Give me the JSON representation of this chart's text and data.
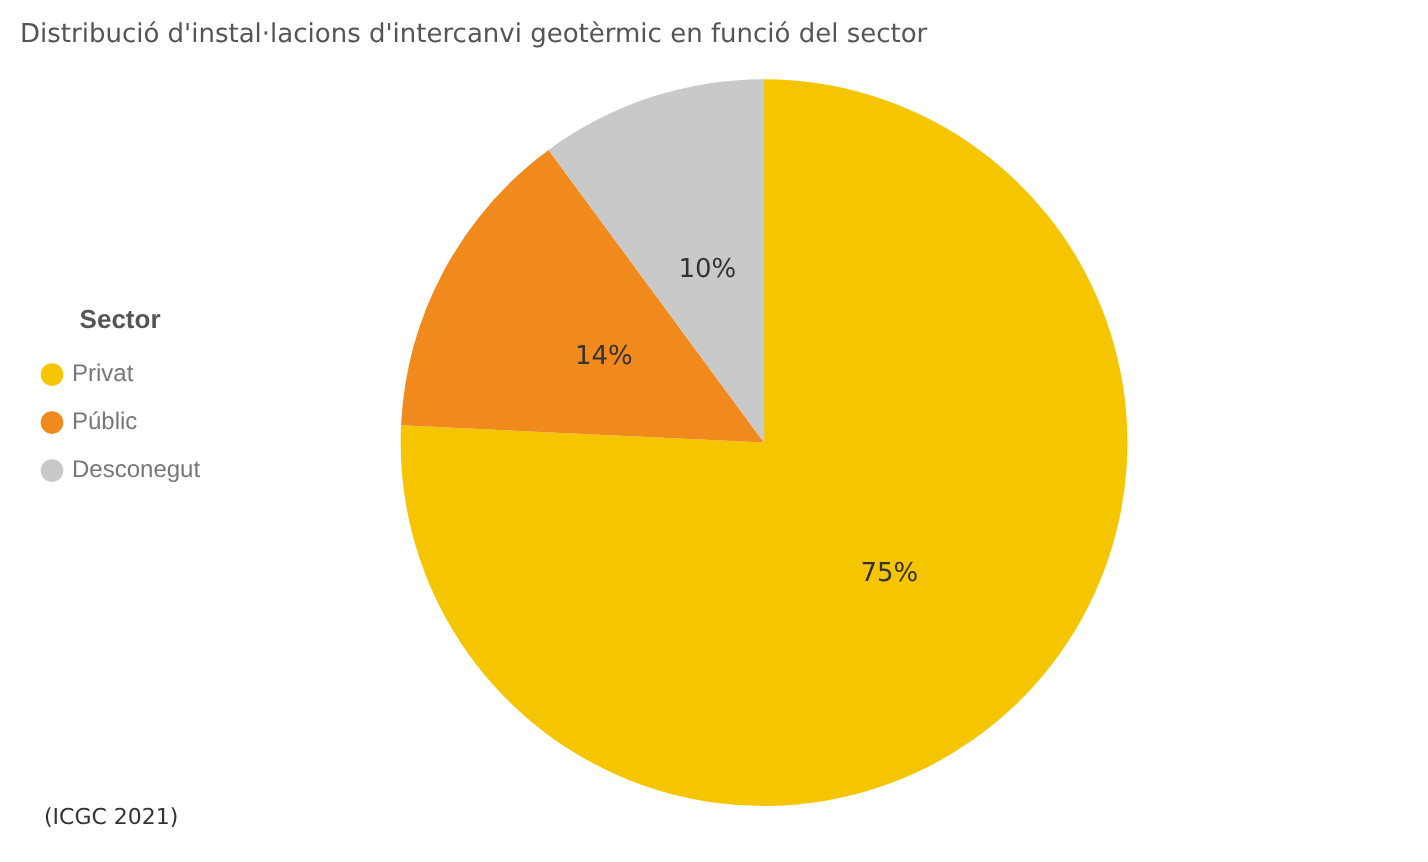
{
  "chart_data": {
    "type": "pie",
    "title": "Distribució d'instal·lacions d'intercanvi geotèrmic en funció del sector",
    "legend_title": "Sector",
    "categories": [
      "Privat",
      "Públic",
      "Desconegut"
    ],
    "values": [
      75,
      14,
      10
    ],
    "value_labels": [
      "75%",
      "14%",
      "10%"
    ],
    "colors": [
      "#f5c600",
      "#f08a1c",
      "#c9c9c9"
    ],
    "legend": "left",
    "annotations": [
      "(ICGC 2021)"
    ]
  }
}
